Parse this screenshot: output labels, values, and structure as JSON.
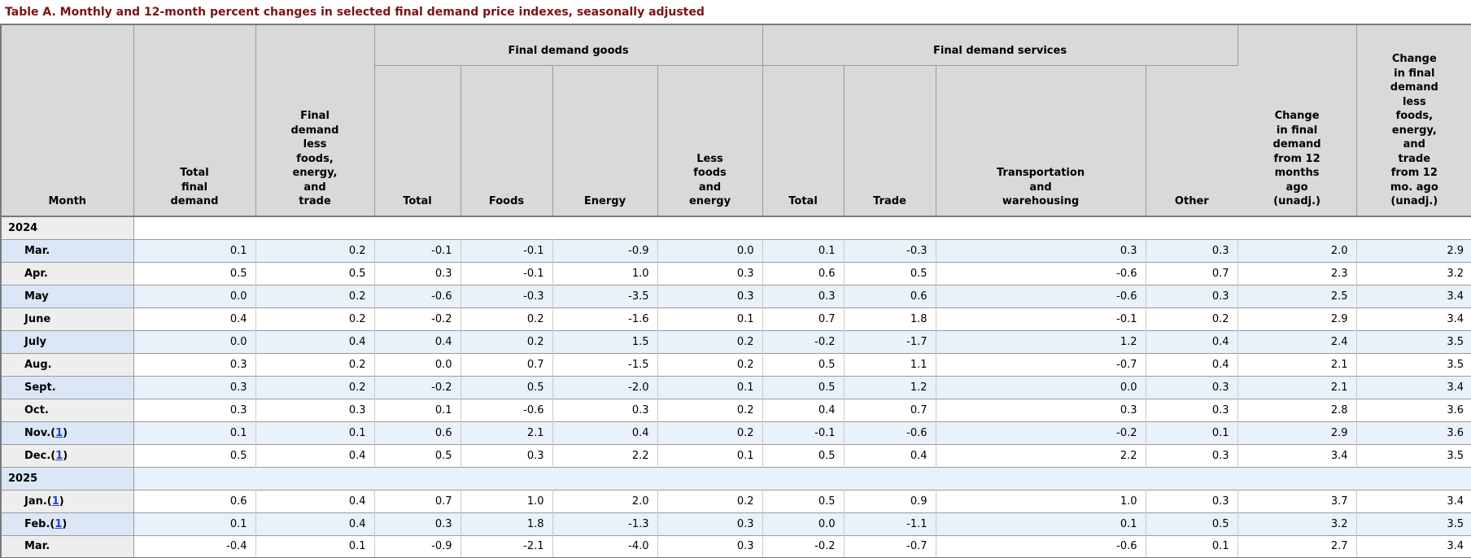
{
  "page_title": "Table A. Monthly and 12-month percent changes in selected final demand price indexes, seasonally adjusted",
  "colors": {
    "title_text": "#7c1214",
    "header_bg": "#d9d9d9",
    "row_alt_bg": "#e9f1fb",
    "row_alt_month_bg": "#dbe7f6",
    "row_plain_month_bg": "#eeeeee",
    "footnote_link": "#2244cc"
  },
  "table": {
    "headers": {
      "month": "Month",
      "total_final_demand": "Total\nfinal\ndemand",
      "fd_less_fet": "Final\ndemand\nless\nfoods,\nenergy,\nand\ntrade",
      "goods": {
        "group": "Final demand goods",
        "total": "Total",
        "foods": "Foods",
        "energy": "Energy",
        "less_foods_energy": "Less\nfoods\nand\nenergy"
      },
      "services": {
        "group": "Final demand services",
        "total": "Total",
        "trade": "Trade",
        "transportation": "Transportation\nand\nwarehousing",
        "other": "Other"
      },
      "change_12mo": "Change\nin final\ndemand\nfrom 12\nmonths\nago\n(unadj.)",
      "change_12mo_less": "Change\nin final\ndemand\nless\nfoods,\nenergy,\nand\ntrade\nfrom 12\nmo. ago\n(unadj.)"
    },
    "footnote_symbol": "1",
    "rows": [
      {
        "type": "year",
        "label": "2024"
      },
      {
        "type": "data",
        "month": "Mar.",
        "footnote": false,
        "values": [
          "0.1",
          "0.2",
          "-0.1",
          "-0.1",
          "-0.9",
          "0.0",
          "0.1",
          "-0.3",
          "0.3",
          "0.3",
          "2.0",
          "2.9"
        ]
      },
      {
        "type": "data",
        "month": "Apr.",
        "footnote": false,
        "values": [
          "0.5",
          "0.5",
          "0.3",
          "-0.1",
          "1.0",
          "0.3",
          "0.6",
          "0.5",
          "-0.6",
          "0.7",
          "2.3",
          "3.2"
        ]
      },
      {
        "type": "data",
        "month": "May",
        "footnote": false,
        "values": [
          "0.0",
          "0.2",
          "-0.6",
          "-0.3",
          "-3.5",
          "0.3",
          "0.3",
          "0.6",
          "-0.6",
          "0.3",
          "2.5",
          "3.4"
        ]
      },
      {
        "type": "data",
        "month": "June",
        "footnote": false,
        "values": [
          "0.4",
          "0.2",
          "-0.2",
          "0.2",
          "-1.6",
          "0.1",
          "0.7",
          "1.8",
          "-0.1",
          "0.2",
          "2.9",
          "3.4"
        ]
      },
      {
        "type": "data",
        "month": "July",
        "footnote": false,
        "values": [
          "0.0",
          "0.4",
          "0.4",
          "0.2",
          "1.5",
          "0.2",
          "-0.2",
          "-1.7",
          "1.2",
          "0.4",
          "2.4",
          "3.5"
        ]
      },
      {
        "type": "data",
        "month": "Aug.",
        "footnote": false,
        "values": [
          "0.3",
          "0.2",
          "0.0",
          "0.7",
          "-1.5",
          "0.2",
          "0.5",
          "1.1",
          "-0.7",
          "0.4",
          "2.1",
          "3.5"
        ]
      },
      {
        "type": "data",
        "month": "Sept.",
        "footnote": false,
        "values": [
          "0.3",
          "0.2",
          "-0.2",
          "0.5",
          "-2.0",
          "0.1",
          "0.5",
          "1.2",
          "0.0",
          "0.3",
          "2.1",
          "3.4"
        ]
      },
      {
        "type": "data",
        "month": "Oct.",
        "footnote": false,
        "values": [
          "0.3",
          "0.3",
          "0.1",
          "-0.6",
          "0.3",
          "0.2",
          "0.4",
          "0.7",
          "0.3",
          "0.3",
          "2.8",
          "3.6"
        ]
      },
      {
        "type": "data",
        "month": "Nov.",
        "footnote": true,
        "values": [
          "0.1",
          "0.1",
          "0.6",
          "2.1",
          "0.4",
          "0.2",
          "-0.1",
          "-0.6",
          "-0.2",
          "0.1",
          "2.9",
          "3.6"
        ]
      },
      {
        "type": "data",
        "month": "Dec.",
        "footnote": true,
        "values": [
          "0.5",
          "0.4",
          "0.5",
          "0.3",
          "2.2",
          "0.1",
          "0.5",
          "0.4",
          "2.2",
          "0.3",
          "3.4",
          "3.5"
        ]
      },
      {
        "type": "year",
        "label": "2025"
      },
      {
        "type": "data",
        "month": "Jan.",
        "footnote": true,
        "values": [
          "0.6",
          "0.4",
          "0.7",
          "1.0",
          "2.0",
          "0.2",
          "0.5",
          "0.9",
          "1.0",
          "0.3",
          "3.7",
          "3.4"
        ]
      },
      {
        "type": "data",
        "month": "Feb.",
        "footnote": true,
        "values": [
          "0.1",
          "0.4",
          "0.3",
          "1.8",
          "-1.3",
          "0.3",
          "0.0",
          "-1.1",
          "0.1",
          "0.5",
          "3.2",
          "3.5"
        ]
      },
      {
        "type": "data",
        "month": "Mar.",
        "footnote": false,
        "values": [
          "-0.4",
          "0.1",
          "-0.9",
          "-2.1",
          "-4.0",
          "0.3",
          "-0.2",
          "-0.7",
          "-0.6",
          "0.1",
          "2.7",
          "3.4"
        ]
      }
    ]
  }
}
